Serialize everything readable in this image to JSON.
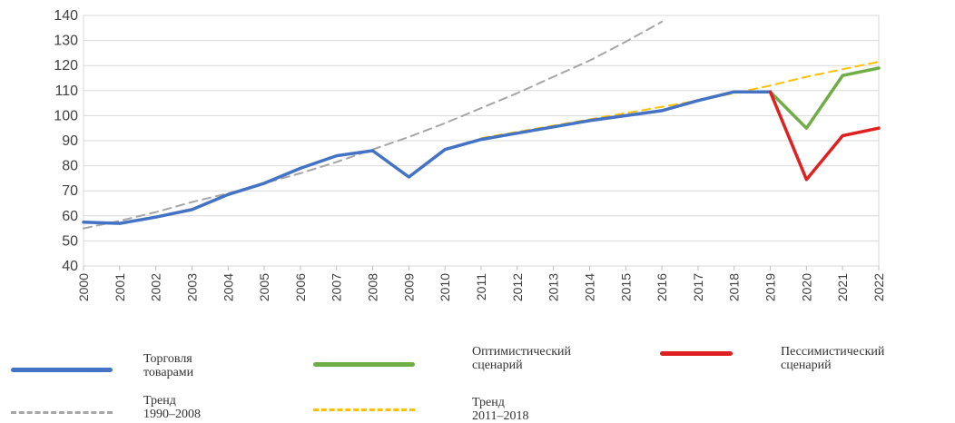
{
  "chart_data": {
    "type": "line",
    "title": "",
    "xlabel": "",
    "ylabel": "",
    "x": [
      "2000",
      "2001",
      "2002",
      "2003",
      "2004",
      "2005",
      "2006",
      "2007",
      "2008",
      "2009",
      "2010",
      "2011",
      "2012",
      "2013",
      "2014",
      "2015",
      "2016",
      "2017",
      "2018",
      "2019",
      "2020",
      "2021",
      "2022"
    ],
    "ylim": [
      40,
      140
    ],
    "yticks": [
      40,
      50,
      60,
      70,
      80,
      90,
      100,
      110,
      120,
      130,
      140
    ],
    "grid": true,
    "legend_position": "bottom",
    "series": [
      {
        "name": "Торговля\nтоварами",
        "color": "#4472c4",
        "style": "solid",
        "x": [
          "2000",
          "2001",
          "2002",
          "2003",
          "2004",
          "2005",
          "2006",
          "2007",
          "2008",
          "2009",
          "2010",
          "2011",
          "2012",
          "2013",
          "2014",
          "2015",
          "2016",
          "2017",
          "2018",
          "2019"
        ],
        "values": [
          57.5,
          57,
          59.5,
          62.5,
          68.5,
          73,
          79,
          84,
          86,
          75.5,
          86.5,
          90.5,
          93,
          95.5,
          98,
          100,
          102,
          106,
          109.5,
          109.5
        ]
      },
      {
        "name": "Оптимистический\nсценарий",
        "color": "#70ad47",
        "style": "solid",
        "x": [
          "2019",
          "2020",
          "2021",
          "2022"
        ],
        "values": [
          109.5,
          95,
          116,
          119
        ]
      },
      {
        "name": "Пессимистический\nсценарий",
        "color": "#e02020",
        "style": "solid",
        "x": [
          "2019",
          "2020",
          "2021",
          "2022"
        ],
        "values": [
          109.5,
          74.5,
          92,
          95
        ]
      },
      {
        "name": "Тренд\n1990–2008",
        "color": "#a6a6a6",
        "style": "dashed",
        "x": [
          "2000",
          "2001",
          "2002",
          "2003",
          "2004",
          "2005",
          "2006",
          "2007",
          "2008",
          "2009",
          "2010",
          "2011",
          "2012",
          "2013",
          "2014",
          "2015",
          "2016"
        ],
        "values": [
          55,
          58,
          61.5,
          65.5,
          69,
          73,
          77,
          81.5,
          86.5,
          91.5,
          97,
          103,
          109,
          115.5,
          122,
          129.5,
          137.5
        ]
      },
      {
        "name": "Тренд\n2011–2018",
        "color": "#ffc000",
        "style": "dashed",
        "x": [
          "2011",
          "2012",
          "2013",
          "2014",
          "2015",
          "2016",
          "2017",
          "2018",
          "2019",
          "2020",
          "2021",
          "2022"
        ],
        "values": [
          91,
          93.5,
          96,
          98.5,
          101,
          103.5,
          106,
          109,
          112,
          115.5,
          118.5,
          121.5
        ]
      }
    ]
  }
}
